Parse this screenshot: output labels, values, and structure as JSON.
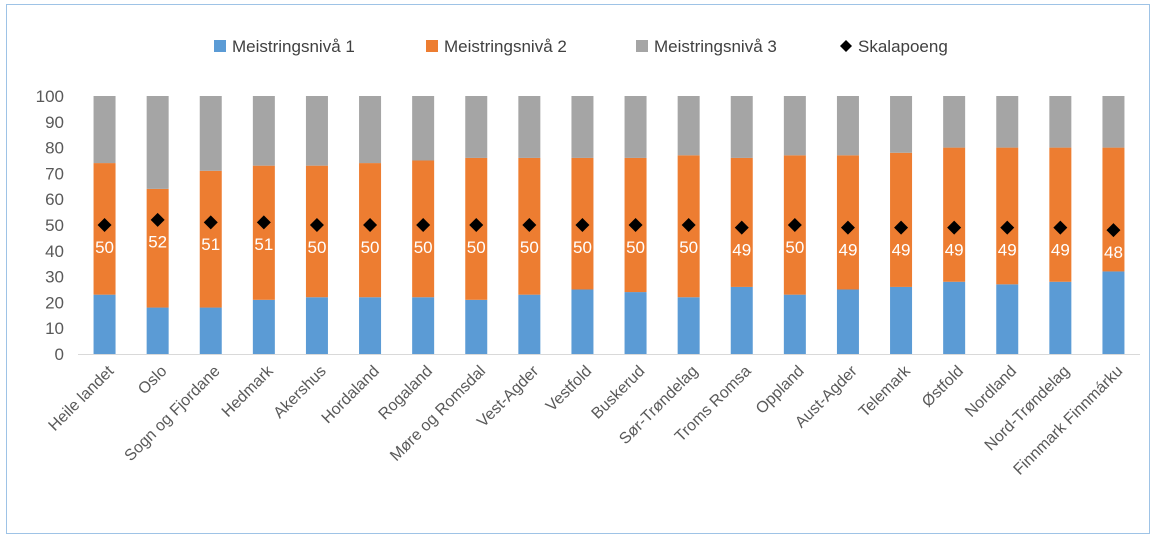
{
  "chart_data": {
    "type": "bar",
    "stacked": true,
    "categories": [
      "Heile landet",
      "Oslo",
      "Sogn og Fjordane",
      "Hedmark",
      "Akershus",
      "Hordaland",
      "Rogaland",
      "Møre og Romsdal",
      "Vest-Agder",
      "Vestfold",
      "Buskerud",
      "Sør-Trøndelag",
      "Troms Romsa",
      "Oppland",
      "Aust-Agder",
      "Telemark",
      "Østfold",
      "Nordland",
      "Nord-Trøndelag",
      "Finnmark Finnmárku"
    ],
    "series": [
      {
        "name": "Meistringsnivå 1",
        "color": "#5b9bd5",
        "values": [
          23,
          18,
          18,
          21,
          22,
          22,
          22,
          21,
          23,
          25,
          24,
          22,
          26,
          23,
          25,
          26,
          28,
          27,
          28,
          32
        ]
      },
      {
        "name": "Meistringsnivå 2",
        "color": "#ed7d31",
        "values": [
          51,
          46,
          53,
          52,
          51,
          52,
          53,
          55,
          53,
          51,
          52,
          55,
          50,
          54,
          52,
          52,
          52,
          53,
          52,
          48
        ]
      },
      {
        "name": "Meistringsnivå 3",
        "color": "#a5a5a5",
        "values": [
          26,
          36,
          29,
          27,
          27,
          26,
          25,
          24,
          24,
          24,
          24,
          23,
          24,
          23,
          23,
          22,
          20,
          20,
          20,
          20
        ]
      }
    ],
    "points": {
      "name": "Skalapoeng",
      "marker": "diamond",
      "color": "#000000",
      "values": [
        50,
        52,
        51,
        51,
        50,
        50,
        50,
        50,
        50,
        50,
        50,
        50,
        49,
        50,
        49,
        49,
        49,
        49,
        49,
        48
      ]
    },
    "data_labels": [
      "50",
      "52",
      "51",
      "51",
      "50",
      "50",
      "50",
      "50",
      "50",
      "50",
      "50",
      "50",
      "49",
      "50",
      "49",
      "49",
      "49",
      "49",
      "49",
      "48"
    ],
    "yticks": [
      0,
      10,
      20,
      30,
      40,
      50,
      60,
      70,
      80,
      90,
      100
    ],
    "ylim": [
      0,
      100
    ],
    "legend_position": "top"
  }
}
